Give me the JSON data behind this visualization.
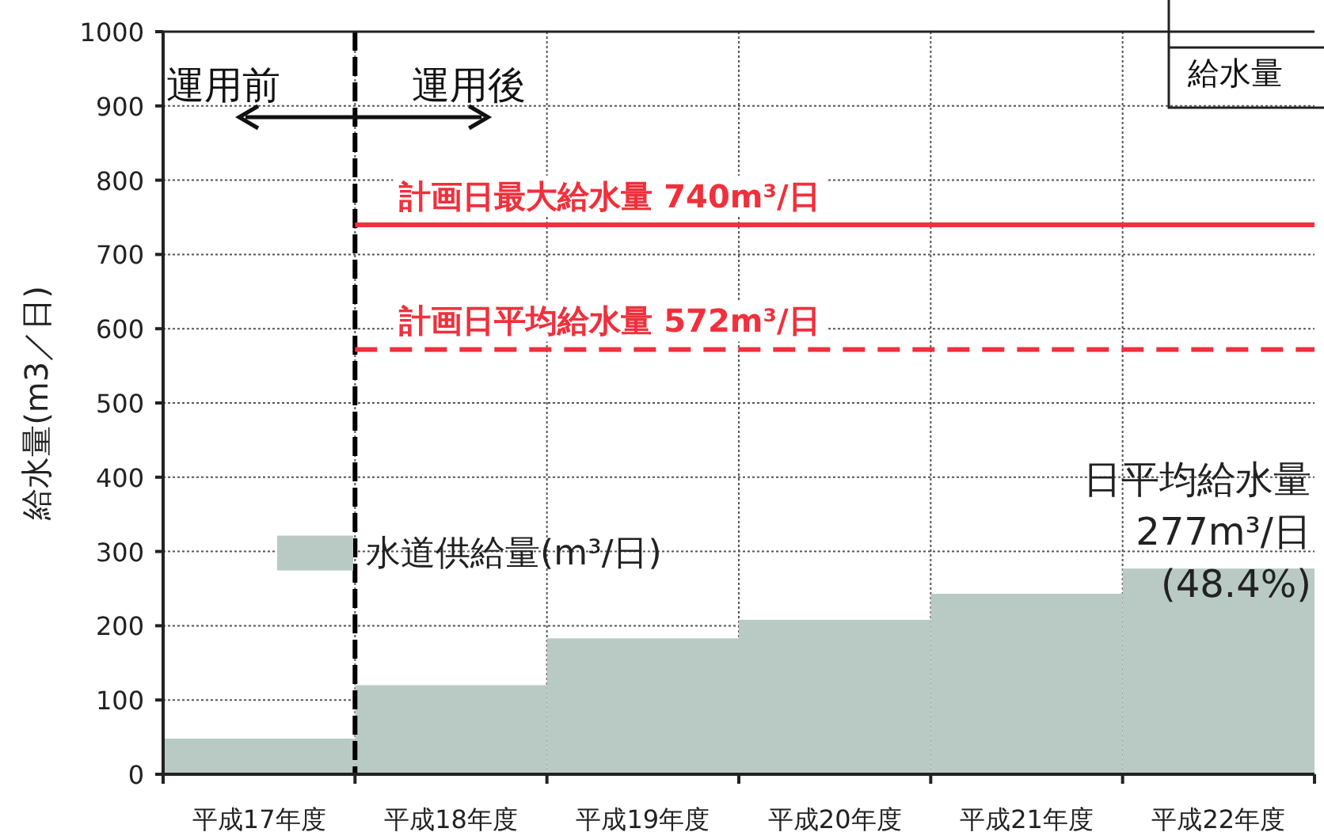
{
  "chart_data": {
    "type": "bar",
    "ylabel": "給水量(m3／日)",
    "categories": [
      "平成17年度",
      "平成18年度",
      "平成19年度",
      "平成20年度",
      "平成21年度",
      "平成22年度"
    ],
    "series": [
      {
        "name": "水道供給量(m³/日)",
        "color": "#b9cac5",
        "values": [
          48,
          120,
          183,
          208,
          243,
          277
        ]
      }
    ],
    "ylim": [
      0,
      1000
    ],
    "yticks": [
      0,
      100,
      200,
      300,
      400,
      500,
      600,
      700,
      800,
      900,
      1000
    ],
    "grid": true,
    "legend": "left",
    "ref_lines": [
      {
        "axis": "x",
        "value": "平成18年度",
        "color": "#000000",
        "line_style": "dashed"
      },
      {
        "axis": "y",
        "value": 740,
        "label": "計画日最大給水量  740m³/日",
        "color": "#f0303c",
        "line_style": "solid"
      },
      {
        "axis": "y",
        "value": 572,
        "label": "計画日平均給水量  572m³/日",
        "color": "#f0303c",
        "line_style": "dashed"
      }
    ],
    "annotations": [
      "運用前",
      "運用後",
      "給水量",
      {
        "text": "日平均給水量\n277m³/日\n(48.4%)",
        "x": "平成22年度",
        "y": 277
      }
    ]
  }
}
